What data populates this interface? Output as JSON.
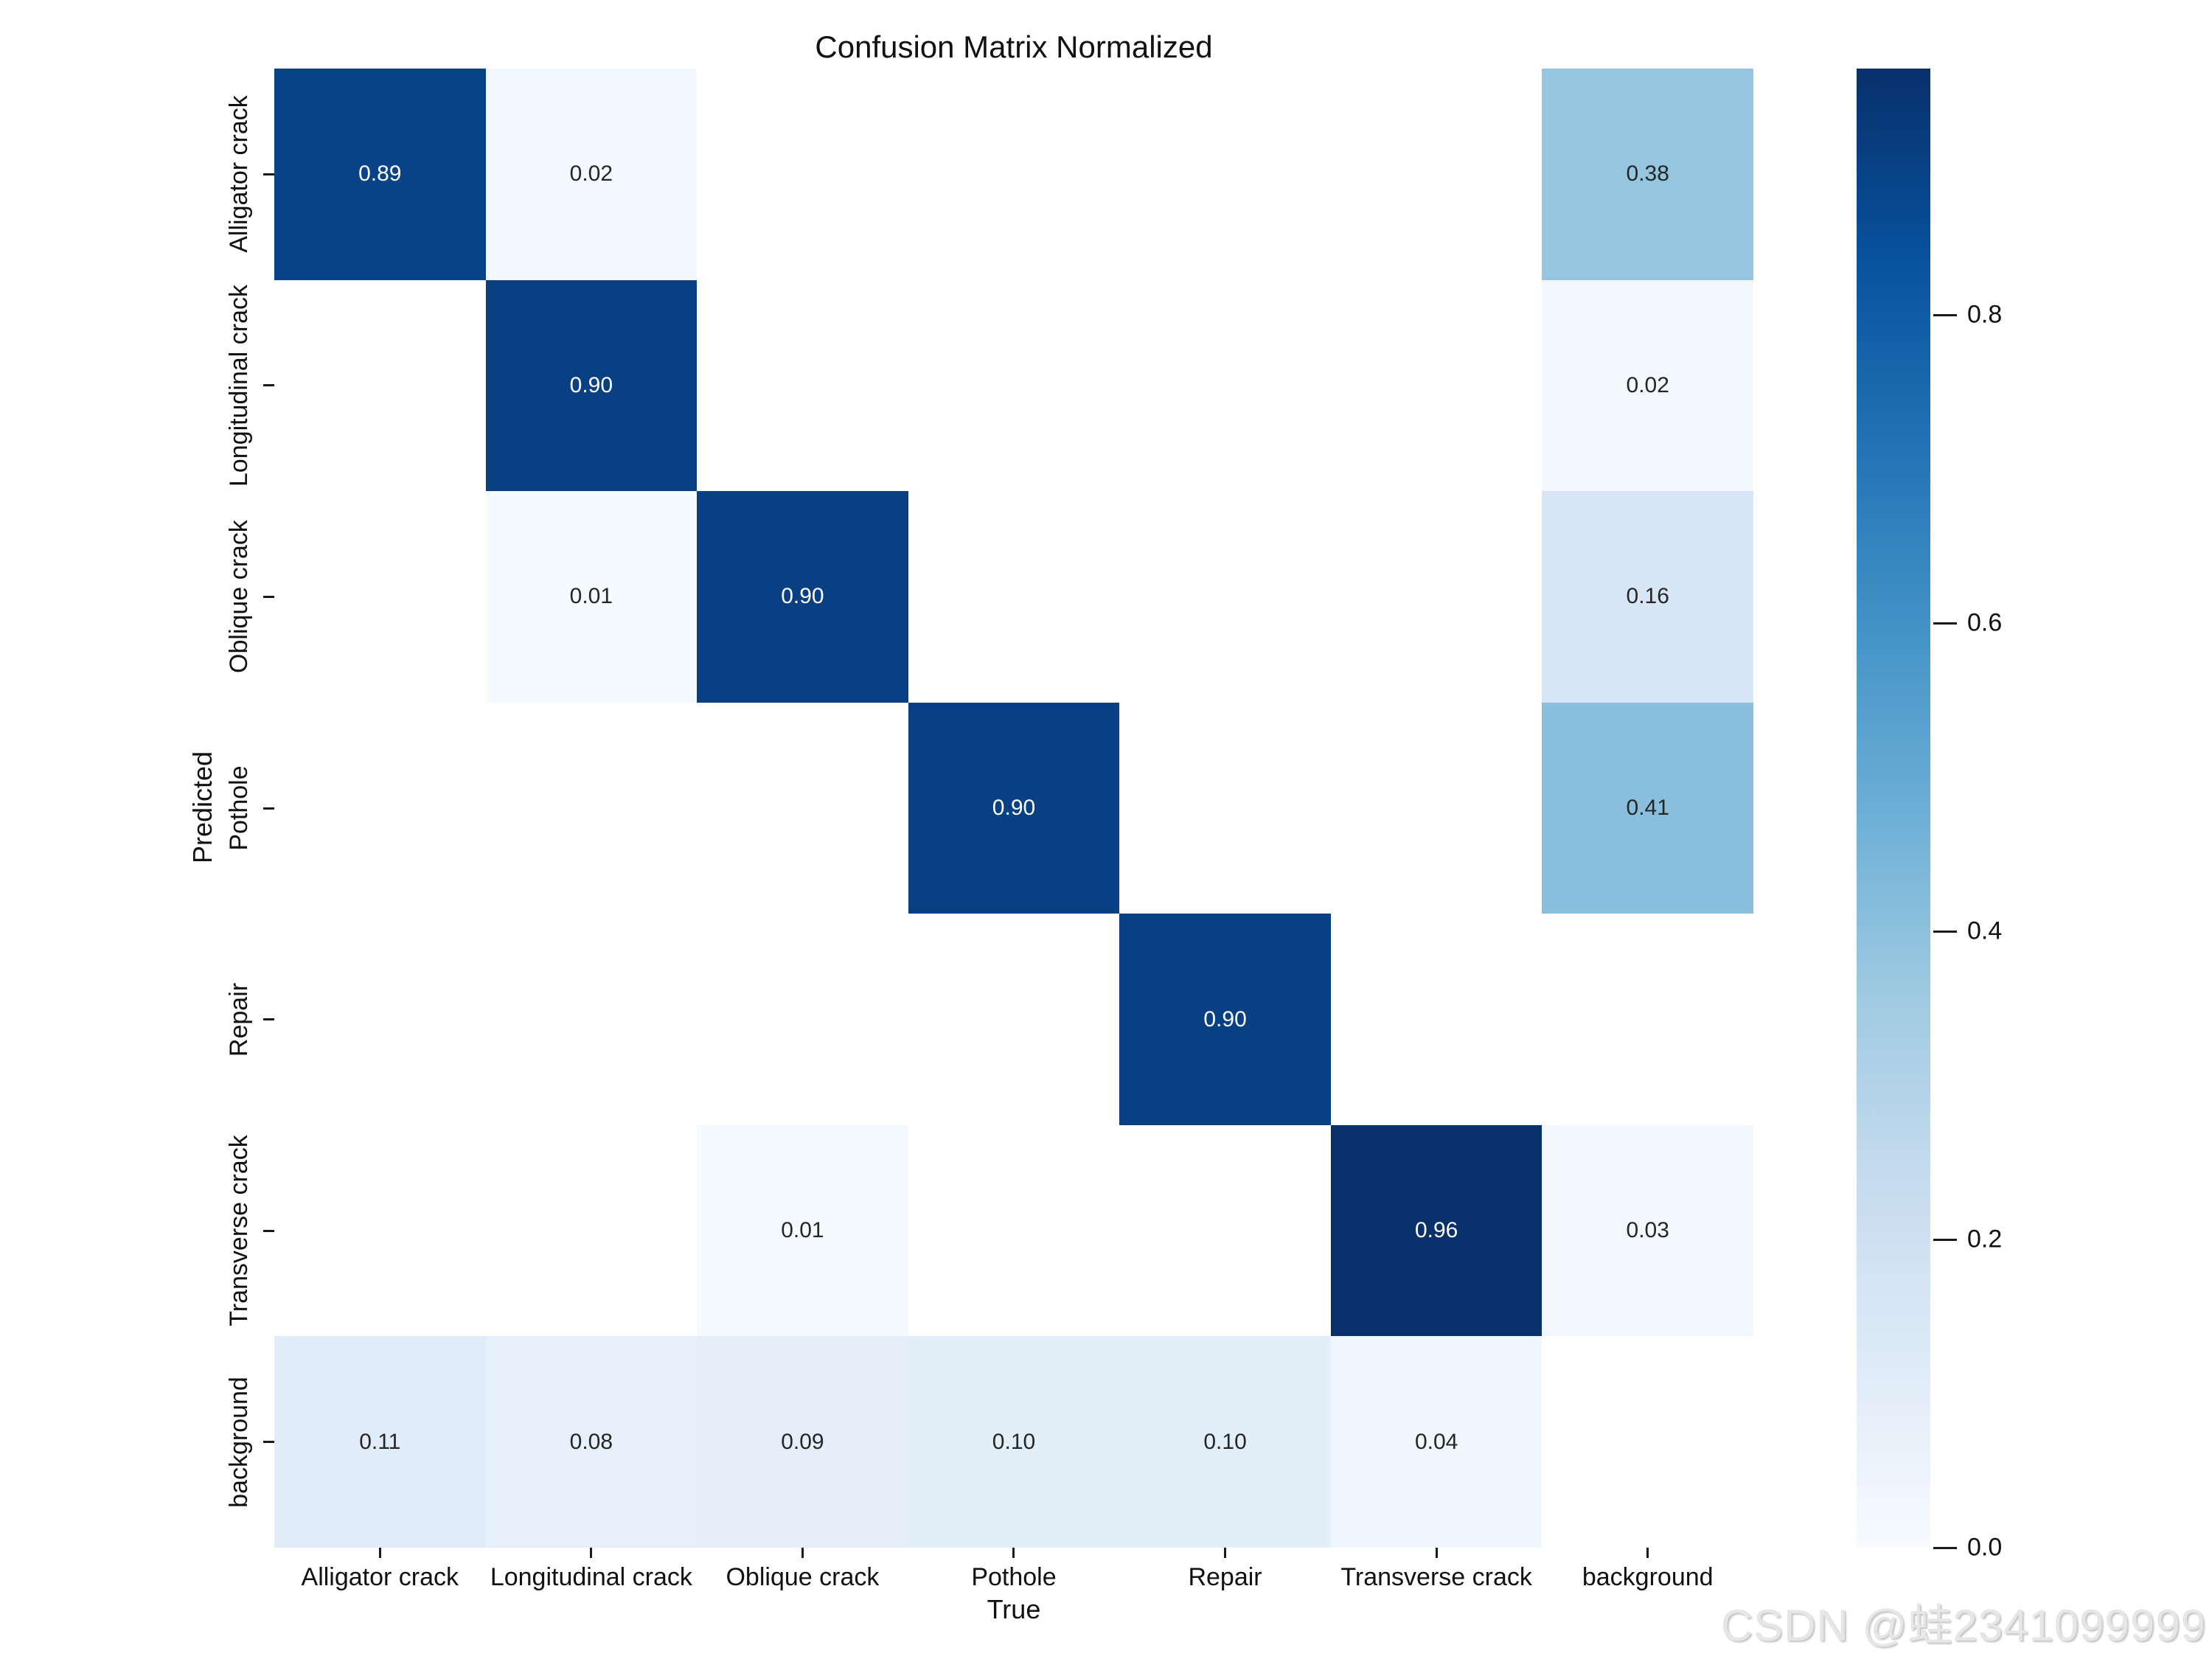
{
  "watermark": "CSDN @蛙2341099999",
  "chart_data": {
    "type": "heatmap",
    "title": "Confusion Matrix Normalized",
    "xlabel": "True",
    "ylabel": "Predicted",
    "x_categories": [
      "Alligator crack",
      "Longitudinal crack",
      "Oblique crack",
      "Pothole",
      "Repair",
      "Transverse crack",
      "background"
    ],
    "y_categories": [
      "Alligator crack",
      "Longitudinal crack",
      "Oblique crack",
      "Pothole",
      "Repair",
      "Transverse crack",
      "background"
    ],
    "matrix": [
      [
        0.89,
        0.02,
        null,
        null,
        null,
        null,
        0.38
      ],
      [
        null,
        0.9,
        null,
        null,
        null,
        null,
        0.02
      ],
      [
        null,
        0.01,
        0.9,
        null,
        null,
        null,
        0.16
      ],
      [
        null,
        null,
        null,
        0.9,
        null,
        null,
        0.41
      ],
      [
        null,
        null,
        null,
        null,
        0.9,
        null,
        null
      ],
      [
        null,
        null,
        0.01,
        null,
        null,
        0.96,
        0.03
      ],
      [
        0.11,
        0.08,
        0.09,
        0.1,
        0.1,
        0.04,
        null
      ]
    ],
    "value_format_decimals": 2,
    "vmax": 0.96,
    "vmin": 0.0,
    "empty_cell_color": "#ffffff",
    "annotation_dark_text_color": "#262626",
    "annotation_light_text_color": "#ffffff",
    "colorbar_ticks": [
      0.8,
      0.6,
      0.4,
      0.2,
      0.0
    ],
    "colorbar_position": "right",
    "grid": false,
    "colormap": {
      "name": "Blues",
      "anchors": [
        "#f7fbff",
        "#deebf7",
        "#c6dbef",
        "#9ecae1",
        "#6baed6",
        "#4292c6",
        "#2171b5",
        "#08519c",
        "#08306b"
      ]
    }
  }
}
